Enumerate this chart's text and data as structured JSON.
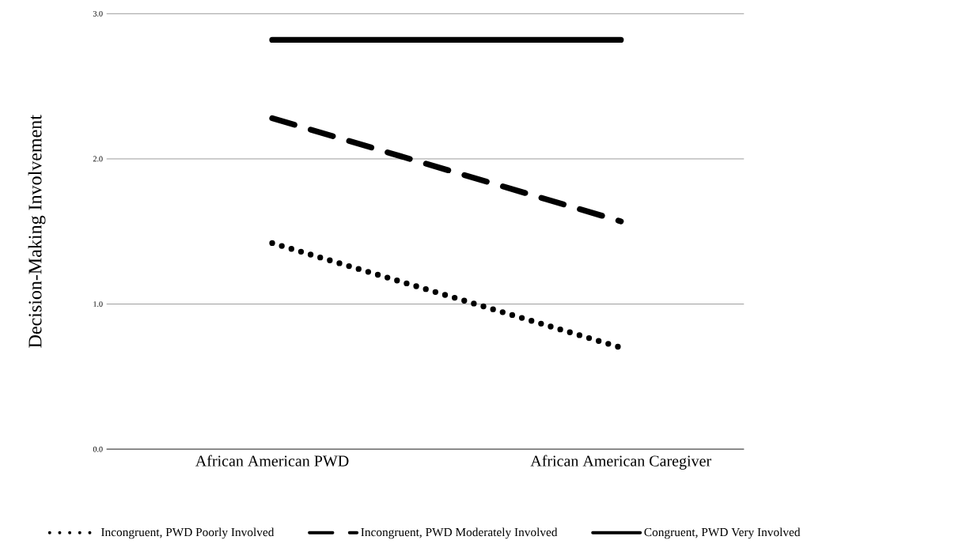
{
  "chart_data": {
    "type": "line",
    "ylabel": "Decision-Making Involvement",
    "categories": [
      "African American PWD",
      "African American Caregiver"
    ],
    "series": [
      {
        "name": "Incongruent, PWD Poorly Involved",
        "color": "#000000",
        "line_style": "dotted",
        "values": [
          1.42,
          0.7
        ]
      },
      {
        "name": "Incongruent,  PWD Moderately Involved",
        "color": "#000000",
        "line_style": "dashed",
        "values": [
          2.28,
          1.57
        ]
      },
      {
        "name": "Congruent, PWD Very Involved",
        "color": "#000000",
        "line_style": "solid",
        "values": [
          2.82,
          2.82
        ]
      }
    ],
    "ylim": [
      0,
      3
    ],
    "yticks": [
      {
        "value": 0,
        "label": "0.0"
      },
      {
        "value": 1,
        "label": "1.0"
      },
      {
        "value": 2,
        "label": "2.0"
      },
      {
        "value": 3,
        "label": "3.0"
      }
    ],
    "grid": "y",
    "legend": "bottom"
  }
}
